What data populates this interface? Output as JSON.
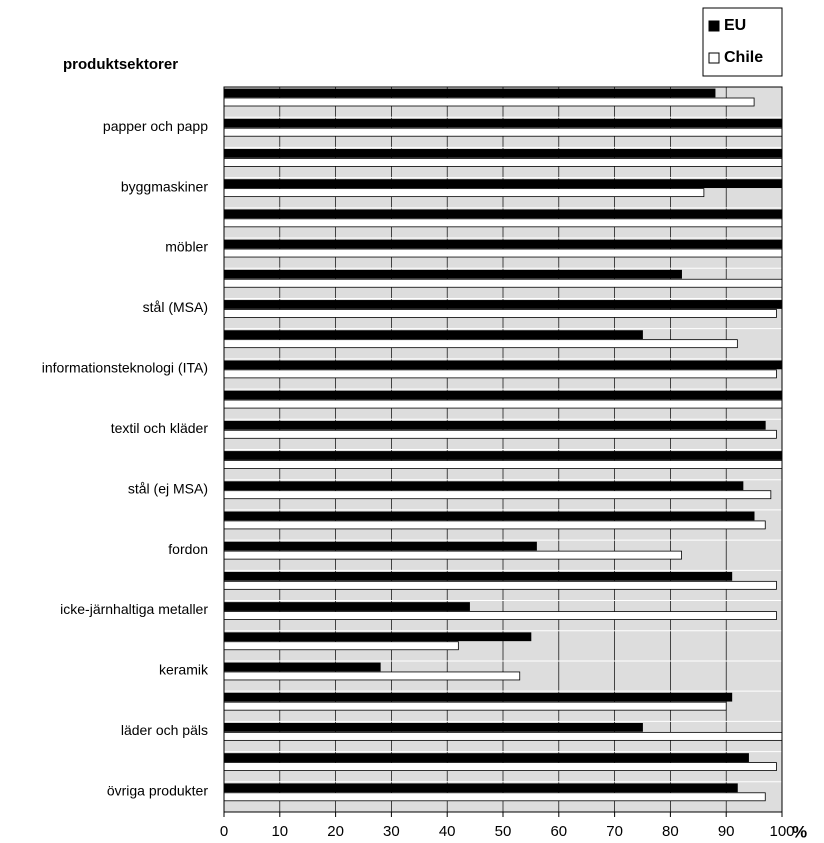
{
  "chart_data": {
    "type": "barh",
    "y_label": "produktsektorer",
    "x_label": "%",
    "categories": [
      null,
      "papper och papp",
      null,
      "byggmaskiner",
      null,
      "möbler",
      null,
      "stål (MSA)",
      null,
      "informationsteknologi (ITA)",
      null,
      "textil och kläder",
      null,
      "stål (ej MSA)",
      null,
      "fordon",
      null,
      "icke-järnhaltiga metaller",
      null,
      "keramik",
      null,
      "läder och päls",
      null,
      "övriga produkter"
    ],
    "series": [
      {
        "name": "EU",
        "color": "#000000",
        "values": [
          88,
          100,
          100,
          100,
          100,
          100,
          82,
          100,
          75,
          100,
          100,
          97,
          100,
          93,
          95,
          56,
          91,
          44,
          55,
          28,
          91,
          75,
          94,
          92
        ]
      },
      {
        "name": "Chile",
        "color": "#ffffff",
        "values": [
          95,
          100,
          100,
          86,
          100,
          100,
          100,
          99,
          92,
          99,
          100,
          99,
          100,
          98,
          97,
          82,
          99,
          99,
          42,
          53,
          90,
          100,
          99,
          97
        ]
      }
    ],
    "xlim": [
      0,
      100
    ],
    "xticks": [
      0,
      10,
      20,
      30,
      40,
      50,
      60,
      70,
      80,
      90,
      100
    ],
    "grid": true,
    "legend": "top-right",
    "background": "#dddddd"
  }
}
